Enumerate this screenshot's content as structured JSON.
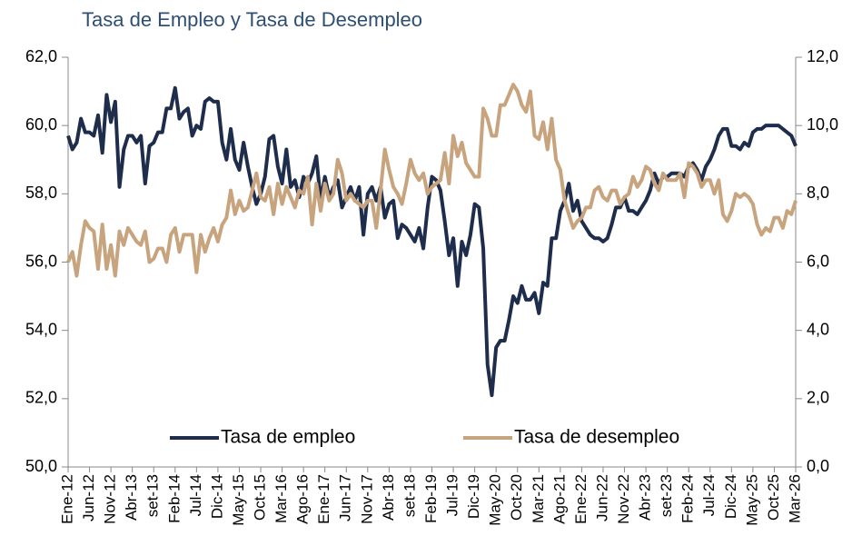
{
  "chart_data": {
    "type": "line",
    "title": "Tasa de Empleo y Tasa de Desempleo",
    "categories": [
      "Ene-12",
      null,
      null,
      null,
      null,
      "Jun-12",
      null,
      null,
      null,
      null,
      "Nov-12",
      null,
      null,
      null,
      null,
      "Abr-13",
      null,
      null,
      null,
      null,
      "set-13",
      null,
      null,
      null,
      null,
      "Feb-14",
      null,
      null,
      null,
      null,
      "Jul-14",
      null,
      null,
      null,
      null,
      "Dic-14",
      null,
      null,
      null,
      null,
      "May-15",
      null,
      null,
      null,
      null,
      "Oct-15",
      null,
      null,
      null,
      null,
      "Mar-16",
      null,
      null,
      null,
      null,
      "Ago-16",
      null,
      null,
      null,
      null,
      "Ene-17",
      null,
      null,
      null,
      null,
      "Jun-17",
      null,
      null,
      null,
      null,
      "Nov-17",
      null,
      null,
      null,
      null,
      "Abr-18",
      null,
      null,
      null,
      null,
      "set-18",
      null,
      null,
      null,
      null,
      "Feb-19",
      null,
      null,
      null,
      null,
      "Jul-19",
      null,
      null,
      null,
      null,
      "Dic-19",
      null,
      null,
      null,
      null,
      "May-20",
      null,
      null,
      null,
      null,
      "Oct-20",
      null,
      null,
      null,
      null,
      "Mar-21",
      null,
      null,
      null,
      null,
      "Ago-21",
      null,
      null,
      null,
      null,
      "Ene-22",
      null,
      null,
      null,
      null,
      "Jun-22",
      null,
      null,
      null,
      null,
      "Nov-22",
      null,
      null,
      null,
      null,
      "Abr-23",
      null,
      null,
      null,
      null,
      "set-23",
      null,
      null,
      null,
      null,
      "Feb-24",
      null,
      null,
      null,
      null,
      "Jul-24",
      null,
      null,
      null,
      null,
      "Dic-24",
      null,
      null,
      null,
      null,
      "May-25",
      null,
      null,
      null,
      null,
      "Oct-25",
      null,
      null,
      null,
      null,
      "Mar-26"
    ],
    "series": [
      {
        "name": "Tasa de empleo",
        "color": "#1f2d4d",
        "axis": "y",
        "values": [
          59.7,
          59.3,
          59.5,
          60.2,
          59.8,
          59.8,
          59.7,
          60.3,
          59.2,
          60.9,
          60.1,
          60.7,
          58.2,
          59.3,
          59.7,
          59.7,
          59.5,
          59.7,
          58.3,
          59.4,
          59.5,
          59.8,
          59.8,
          60.5,
          60.5,
          61.1,
          60.2,
          60.4,
          60.5,
          59.7,
          60.0,
          59.9,
          60.7,
          60.8,
          60.7,
          60.7,
          59.5,
          59.0,
          59.9,
          59.0,
          58.7,
          59.5,
          58.8,
          58.2,
          57.7,
          58.0,
          58.5,
          59.6,
          59.7,
          58.8,
          58.3,
          59.3,
          58.2,
          58.4,
          57.9,
          58.5,
          58.3,
          58.6,
          59.1,
          57.8,
          58.5,
          57.9,
          58.2,
          58.4,
          57.6,
          57.9,
          58.2,
          57.8,
          58.2,
          56.8,
          58.0,
          58.2,
          57.8,
          58.2,
          57.3,
          57.7,
          57.8,
          56.7,
          57.1,
          57.0,
          56.8,
          56.6,
          57.0,
          56.4,
          57.6,
          58.5,
          58.4,
          58.1,
          57.2,
          56.2,
          56.7,
          55.3,
          56.6,
          56.2,
          56.8,
          57.7,
          57.6,
          56.4,
          53.0,
          52.1,
          53.5,
          53.7,
          53.7,
          54.3,
          55.0,
          54.8,
          55.3,
          54.9,
          54.9,
          55.1,
          54.5,
          55.4,
          55.3,
          56.7,
          56.7,
          57.5,
          57.8,
          58.3,
          57.5,
          57.8,
          57.2,
          57.0,
          56.8,
          56.7,
          56.7,
          56.6,
          56.7,
          57.1,
          57.6,
          57.6,
          57.9,
          57.5,
          57.5,
          57.4,
          57.6,
          57.8,
          58.1,
          58.6,
          58.3,
          58.5,
          58.5,
          58.6,
          58.6,
          58.6,
          58.5,
          58.8,
          58.9,
          58.7,
          58.4,
          58.8,
          59.0,
          59.3,
          59.7,
          59.9,
          59.9,
          59.4,
          59.4,
          59.3,
          59.5,
          59.4,
          59.8,
          59.9,
          59.9,
          60.0,
          60.0,
          60.0,
          60.0,
          59.9,
          59.8,
          59.7,
          59.4
        ]
      },
      {
        "name": "Tasa de desempleo",
        "color": "#c8a47e",
        "axis": "y2",
        "values": [
          6.0,
          6.3,
          5.6,
          6.5,
          7.2,
          7.0,
          6.9,
          5.8,
          7.1,
          5.8,
          6.5,
          5.6,
          6.9,
          6.5,
          7.0,
          6.8,
          6.6,
          6.5,
          6.9,
          6.0,
          6.1,
          6.4,
          6.4,
          6.0,
          6.8,
          7.0,
          6.3,
          6.8,
          6.8,
          6.8,
          5.7,
          6.8,
          6.3,
          6.7,
          7.0,
          6.6,
          7.1,
          7.3,
          8.1,
          7.4,
          7.8,
          7.5,
          7.6,
          8.1,
          8.6,
          7.9,
          7.8,
          8.2,
          7.4,
          8.3,
          7.7,
          8.2,
          7.9,
          7.6,
          8.1,
          8.0,
          8.5,
          7.1,
          8.3,
          7.5,
          8.3,
          7.8,
          8.0,
          9.0,
          8.6,
          7.8,
          8.0,
          7.8,
          7.7,
          7.6,
          7.8,
          7.8,
          7.0,
          8.1,
          9.3,
          8.7,
          8.2,
          8.0,
          7.7,
          8.3,
          9.0,
          8.6,
          8.4,
          8.6,
          8.0,
          8.2,
          8.3,
          8.4,
          9.2,
          8.3,
          9.7,
          9.1,
          9.5,
          8.9,
          8.7,
          8.5,
          8.5,
          10.5,
          10.2,
          9.7,
          9.7,
          10.6,
          10.6,
          10.9,
          11.2,
          11.0,
          10.6,
          10.4,
          11.0,
          9.7,
          9.6,
          10.1,
          9.3,
          10.2,
          9.0,
          8.7,
          7.8,
          7.4,
          7.0,
          7.2,
          7.3,
          7.6,
          7.6,
          8.1,
          8.2,
          7.9,
          7.8,
          8.1,
          8.1,
          7.7,
          7.9,
          8.0,
          8.5,
          8.2,
          8.4,
          8.8,
          8.7,
          8.3,
          8.1,
          8.6,
          8.4,
          8.4,
          8.4,
          8.6,
          7.9,
          8.9,
          8.8,
          8.6,
          8.2,
          8.4,
          8.4,
          8.0,
          8.4,
          7.4,
          7.2,
          7.5,
          8.0,
          7.9,
          8.0,
          7.9,
          7.7,
          7.1,
          6.8,
          7.0,
          6.9,
          7.3,
          7.3,
          7.0,
          7.5,
          7.4,
          7.8
        ]
      }
    ],
    "ylim": [
      50,
      62
    ],
    "yticks": [
      {
        "value": 50,
        "label": "50,0"
      },
      {
        "value": 52,
        "label": "52,0"
      },
      {
        "value": 54,
        "label": "54,0"
      },
      {
        "value": 56,
        "label": "56,0"
      },
      {
        "value": 58,
        "label": "58,0"
      },
      {
        "value": 60,
        "label": "60,0"
      },
      {
        "value": 62,
        "label": "62,0"
      }
    ],
    "y2lim": [
      0,
      12
    ],
    "y2ticks": [
      {
        "value": 0,
        "label": "0,0"
      },
      {
        "value": 2,
        "label": "2,0"
      },
      {
        "value": 4,
        "label": "4,0"
      },
      {
        "value": 6,
        "label": "6,0"
      },
      {
        "value": 8,
        "label": "8,0"
      },
      {
        "value": 10,
        "label": "10,0"
      },
      {
        "value": 12,
        "label": "12,0"
      }
    ],
    "grid": false,
    "legend": "lower center"
  }
}
